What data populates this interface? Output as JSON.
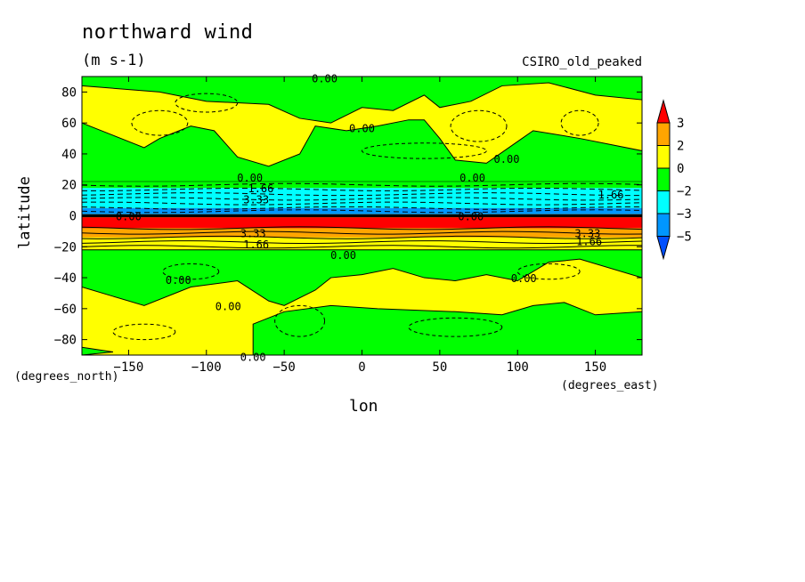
{
  "header": {
    "title": "northward wind",
    "units": "(m s-1)",
    "model": "CSIRO_old_peaked"
  },
  "chart_data": {
    "type": "heatmap",
    "title": "northward wind",
    "units": "(m s-1)",
    "dataset": "CSIRO_old_peaked",
    "xlabel": "lon",
    "ylabel": "latitude",
    "x_units": "(degrees_east)",
    "y_units": "(degrees_north)",
    "xlim": [
      -180,
      180
    ],
    "ylim": [
      -90,
      90
    ],
    "x_ticks": [
      -150,
      -100,
      -50,
      0,
      50,
      100,
      150
    ],
    "y_ticks": [
      80,
      60,
      40,
      20,
      0,
      -20,
      -40,
      -60,
      -80
    ],
    "x_tick_labels": [
      "−150",
      "−100",
      "−50",
      "0",
      "50",
      "100",
      "150"
    ],
    "y_tick_labels": [
      "80",
      "60",
      "40",
      "20",
      "0",
      "−20",
      "−40",
      "−60",
      "−80"
    ],
    "colorbar": {
      "labels": [
        "3",
        "2",
        "0",
        "−2",
        "−3",
        "−5"
      ],
      "colors": [
        "#ff0000",
        "#ffa500",
        "#ffff00",
        "#00ff00",
        "#00ffff",
        "#0096ff",
        "#0050ff"
      ]
    },
    "zonal_bands": [
      {
        "lat_from": 90,
        "lat_to": 30,
        "class": "mixed_green_yellow"
      },
      {
        "lat_from": 22,
        "lat_to": 18,
        "color": "#00ff00"
      },
      {
        "lat_from": 18,
        "lat_to": 5,
        "color": "#00ffff"
      },
      {
        "lat_from": 5,
        "lat_to": 1,
        "color": "#0096ff"
      },
      {
        "lat_from": 1,
        "lat_to": -1,
        "color": "#000000"
      },
      {
        "lat_from": -1,
        "lat_to": -8,
        "color": "#ff0000"
      },
      {
        "lat_from": -8,
        "lat_to": -14,
        "color": "#ffa500"
      },
      {
        "lat_from": -14,
        "lat_to": -20,
        "color": "#ffff00"
      },
      {
        "lat_from": -20,
        "lat_to": -90,
        "class": "mixed_green_yellow"
      }
    ],
    "contour_labels": [
      {
        "text": "0.00",
        "lon": -24,
        "lat": 89
      },
      {
        "text": "0.00",
        "lon": 0,
        "lat": 57
      },
      {
        "text": "0.00",
        "lon": 93,
        "lat": 37
      },
      {
        "text": "0.00",
        "lon": 71,
        "lat": 25
      },
      {
        "text": "0.00",
        "lon": -72,
        "lat": 25
      },
      {
        "text": "1.66",
        "lon": -65,
        "lat": 18
      },
      {
        "text": "3.33",
        "lon": -68,
        "lat": 11
      },
      {
        "text": "1.66",
        "lon": 160,
        "lat": 14
      },
      {
        "text": "0.00",
        "lon": -150,
        "lat": 0
      },
      {
        "text": "0.00",
        "lon": 70,
        "lat": 0
      },
      {
        "text": "3.33",
        "lon": -70,
        "lat": -11
      },
      {
        "text": "1.66",
        "lon": -68,
        "lat": -18
      },
      {
        "text": "3.33",
        "lon": 145,
        "lat": -11
      },
      {
        "text": "1.66",
        "lon": 146,
        "lat": -16
      },
      {
        "text": "0.00",
        "lon": -12,
        "lat": -25
      },
      {
        "text": "0.00",
        "lon": -118,
        "lat": -41
      },
      {
        "text": "0.00",
        "lon": 104,
        "lat": -40
      },
      {
        "text": "0.00",
        "lon": -86,
        "lat": -58
      },
      {
        "text": "0.00",
        "lon": -70,
        "lat": -91
      }
    ]
  }
}
